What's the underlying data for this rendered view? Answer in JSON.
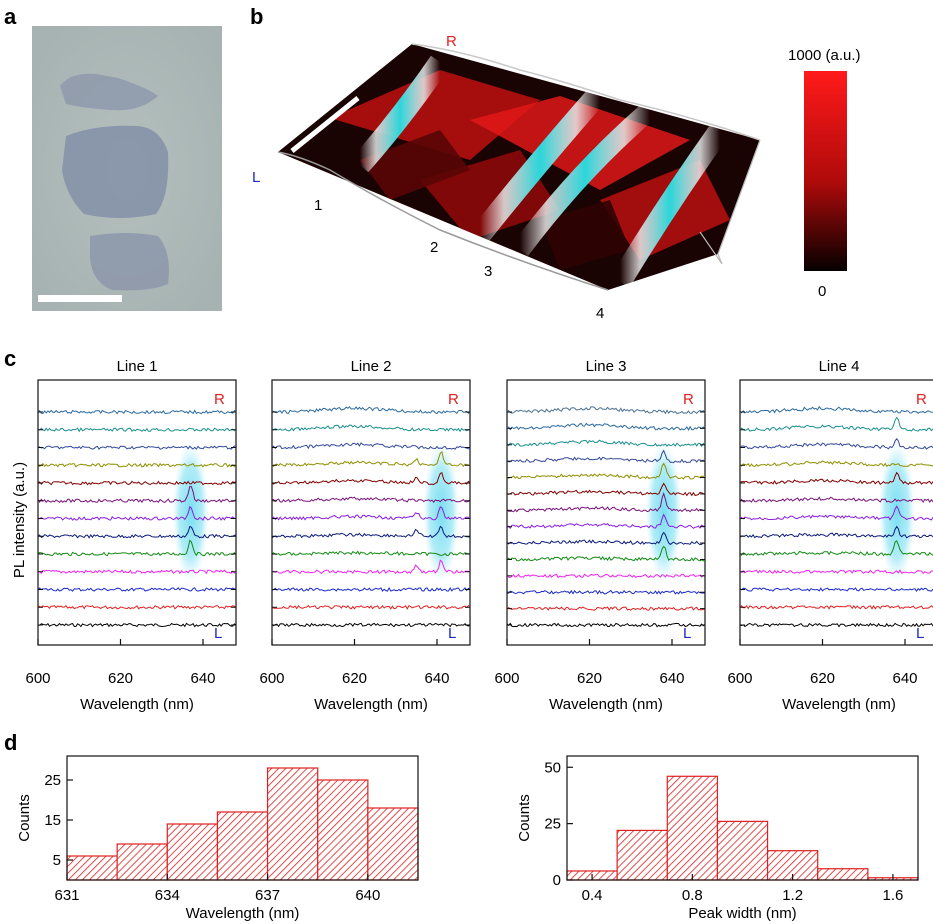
{
  "panels": {
    "a": "a",
    "b": "b",
    "c": "c",
    "d": "d"
  },
  "panel_b": {
    "right_marker": "R",
    "left_marker": "L",
    "line_numbers": [
      "1",
      "2",
      "3",
      "4"
    ],
    "colorbar_max_label": "1000 (a.u.)",
    "colorbar_min_label": "0"
  },
  "panel_c": {
    "ylabel": "PL intensity (a.u.)",
    "xlabel": "Wavelength (nm)",
    "top_marker": "R",
    "bottom_marker": "L",
    "x_ticks": [
      "600",
      "620",
      "640"
    ],
    "subplots": [
      {
        "title": "Line 1",
        "peak_nm": 637,
        "trace_count": 13,
        "peaked_traces": [
          4,
          5,
          6,
          7
        ]
      },
      {
        "title": "Line 2",
        "peak_nm": 641,
        "trace_count": 13,
        "peaked_traces": [
          3,
          5,
          6,
          8,
          9
        ]
      },
      {
        "title": "Line 3",
        "peak_nm": 638,
        "trace_count": 14,
        "peaked_traces": [
          4,
          5,
          6,
          7,
          8,
          9,
          10
        ]
      },
      {
        "title": "Line 4",
        "peak_nm": 638,
        "trace_count": 13,
        "peaked_traces": [
          4,
          5,
          6,
          8,
          10,
          11
        ]
      }
    ],
    "trace_colors": [
      "#000000",
      "#e02020",
      "#1a28c8",
      "#ee22ee",
      "#138a13",
      "#0c1a7a",
      "#8a1ee0",
      "#7a127a",
      "#800000",
      "#8f8f00",
      "#33499a",
      "#1a8f8f",
      "#2a6aa0",
      "#4a7090"
    ],
    "highlight_color": "#7fe0f0"
  },
  "chart_data": [
    {
      "type": "bar",
      "xlabel": "Wavelength (nm)",
      "ylabel": "Counts",
      "bin_edges": [
        631,
        632.5,
        634,
        635.5,
        637,
        638.5,
        640,
        641.5
      ],
      "values": [
        6,
        9,
        14,
        17,
        28,
        25,
        18
      ],
      "x_ticks": [
        "631",
        "634",
        "637",
        "640"
      ],
      "y_ticks": [
        "5",
        "15",
        "25"
      ],
      "xlim": [
        631,
        641.5
      ],
      "ylim": [
        0,
        31
      ],
      "bar_color": "#e02020",
      "hatch": "diagonal"
    },
    {
      "type": "bar",
      "xlabel": "Peak width (nm)",
      "ylabel": "Counts",
      "bin_edges": [
        0.3,
        0.5,
        0.7,
        0.9,
        1.1,
        1.3,
        1.5,
        1.7
      ],
      "values": [
        4,
        22,
        46,
        26,
        13,
        5,
        1
      ],
      "x_ticks": [
        "0.4",
        "0.8",
        "1.2",
        "1.6"
      ],
      "y_ticks": [
        "0",
        "25",
        "50"
      ],
      "xlim": [
        0.3,
        1.7
      ],
      "ylim": [
        0,
        55
      ],
      "bar_color": "#e02020",
      "hatch": "diagonal"
    }
  ]
}
